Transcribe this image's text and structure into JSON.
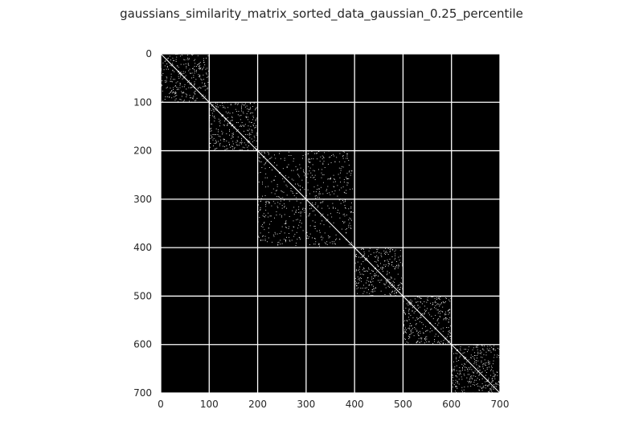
{
  "chart_data": {
    "type": "heatmap",
    "title": "gaussians_similarity_matrix_sorted_data_gaussian_0.25_percentile",
    "n": 700,
    "colormap": {
      "low": "#000000",
      "high": "#ffffff"
    },
    "grid": true,
    "grid_color": "#ffffff",
    "x_ticks": [
      0,
      100,
      200,
      300,
      400,
      500,
      600,
      700
    ],
    "y_ticks": [
      0,
      100,
      200,
      300,
      400,
      500,
      600,
      700
    ],
    "xlim": [
      0,
      700
    ],
    "ylim": [
      700,
      0
    ],
    "diagonal": true,
    "blocks": [
      {
        "rows": [
          0,
          100
        ],
        "cols": [
          0,
          100
        ],
        "density": 0.12
      },
      {
        "rows": [
          100,
          200
        ],
        "cols": [
          100,
          200
        ],
        "density": 0.12
      },
      {
        "rows": [
          200,
          400
        ],
        "cols": [
          200,
          400
        ],
        "density": 0.06
      },
      {
        "rows": [
          400,
          500
        ],
        "cols": [
          400,
          500
        ],
        "density": 0.12
      },
      {
        "rows": [
          500,
          600
        ],
        "cols": [
          500,
          600
        ],
        "density": 0.12
      },
      {
        "rows": [
          600,
          700
        ],
        "cols": [
          600,
          700
        ],
        "density": 0.13
      }
    ]
  }
}
